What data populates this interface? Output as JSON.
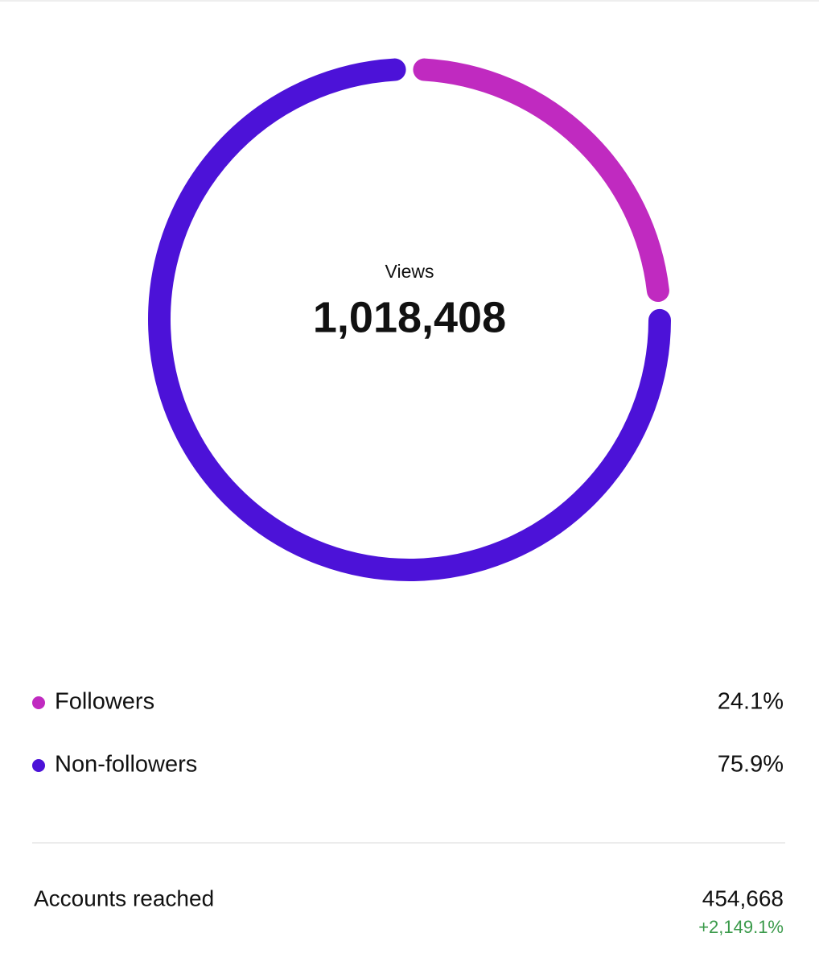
{
  "chart_data": {
    "type": "donut",
    "center_label": "Views",
    "center_value": "1,018,408",
    "categories": [
      "Followers",
      "Non-followers"
    ],
    "values": [
      24.1,
      75.9
    ],
    "value_labels": [
      "24.1%",
      "75.9%"
    ],
    "colors": [
      "#c02ac0",
      "#4c12d8"
    ]
  },
  "summary": {
    "label": "Accounts reached",
    "value": "454,668",
    "change": "+2,149.1%"
  }
}
